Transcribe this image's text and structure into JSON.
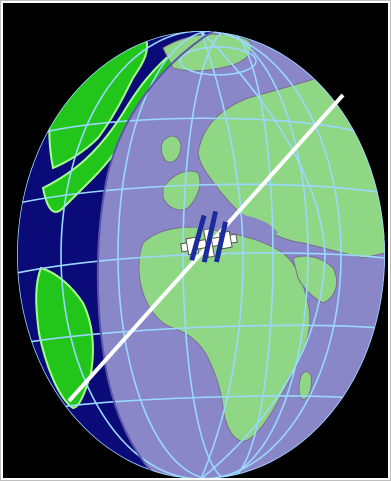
{
  "viewer": {
    "background": "#000000",
    "frame_border": "#bdbdbd",
    "earth": {
      "ocean_day": "#8a87c9",
      "ocean_night": "#0a0a78",
      "land_day": "#8fd685",
      "land_night": "#22c61a",
      "land_edge_night": "#a4ff8a",
      "graticule": "#9ad8ff",
      "coast_lakes": "#7a6e8f"
    },
    "ground_track": {
      "color": "#ffffff"
    },
    "satellite": {
      "icon": "iss-satellite-icon",
      "body_color": "#ffffff",
      "panel_color": "#1c2c9c"
    }
  }
}
